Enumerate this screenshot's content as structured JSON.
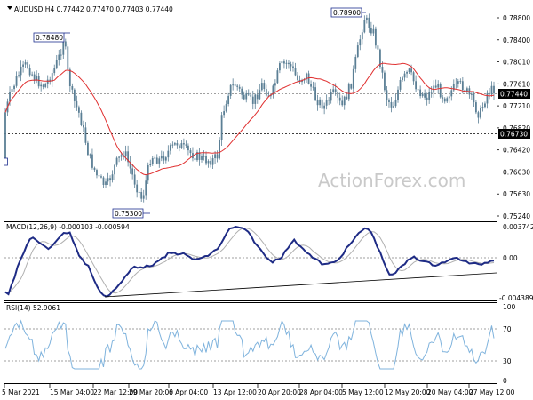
{
  "colors": {
    "candle": "#5b7f95",
    "ma": "#e03030",
    "macd": "#1e2b85",
    "signal": "#b0b0b0",
    "rsi": "#7fb3dd",
    "frame": "#000000",
    "grid_dash": "#808080",
    "box": "#1f2f8f"
  },
  "chart_data": [
    {
      "type": "candlestick",
      "title": "AUDUSD,H4  0.77442 0.77470 0.77403 0.77440",
      "y_ticks": [
        "0.78800",
        "0.78400",
        "0.78010",
        "0.77610",
        "0.77210",
        "0.76820",
        "0.76420",
        "0.76030",
        "0.75630",
        "0.75240"
      ],
      "ylim": [
        0.752,
        0.79
      ],
      "price_tag": "0.77440",
      "support_tag": "0.76730",
      "left_tag": "",
      "annotations": [
        {
          "label": "0.78480",
          "value": 0.7848
        },
        {
          "label": "0.75300",
          "value": 0.753
        },
        {
          "label": "0.78900",
          "value": 0.789
        }
      ],
      "moving_average": "red",
      "watermark": "ActionForex.com"
    },
    {
      "type": "line",
      "title": "MACD(12,26,9) -0.000103 -0.000594",
      "y_ticks": [
        "0.003742",
        "0.00",
        "-0.004389"
      ],
      "ylim": [
        -0.0046,
        0.004
      ],
      "series": [
        "macd",
        "signal"
      ]
    },
    {
      "type": "line",
      "title": "RSI(14) 52.9061",
      "y_ticks": [
        "100",
        "70",
        "30",
        "0"
      ],
      "ylim": [
        0,
        100
      ],
      "levels": [
        70,
        30
      ]
    }
  ],
  "x_axis": {
    "labels": [
      "5 Mar 2021",
      "15 Mar 04:00",
      "22 Mar 12:00",
      "29 Mar 20:00",
      "6 Apr 04:00",
      "13 Apr 12:00",
      "20 Apr 20:00",
      "28 Apr 04:00",
      "5 May 12:00",
      "12 May 20:00",
      "20 May 04:00",
      "27 May 12:00"
    ]
  }
}
